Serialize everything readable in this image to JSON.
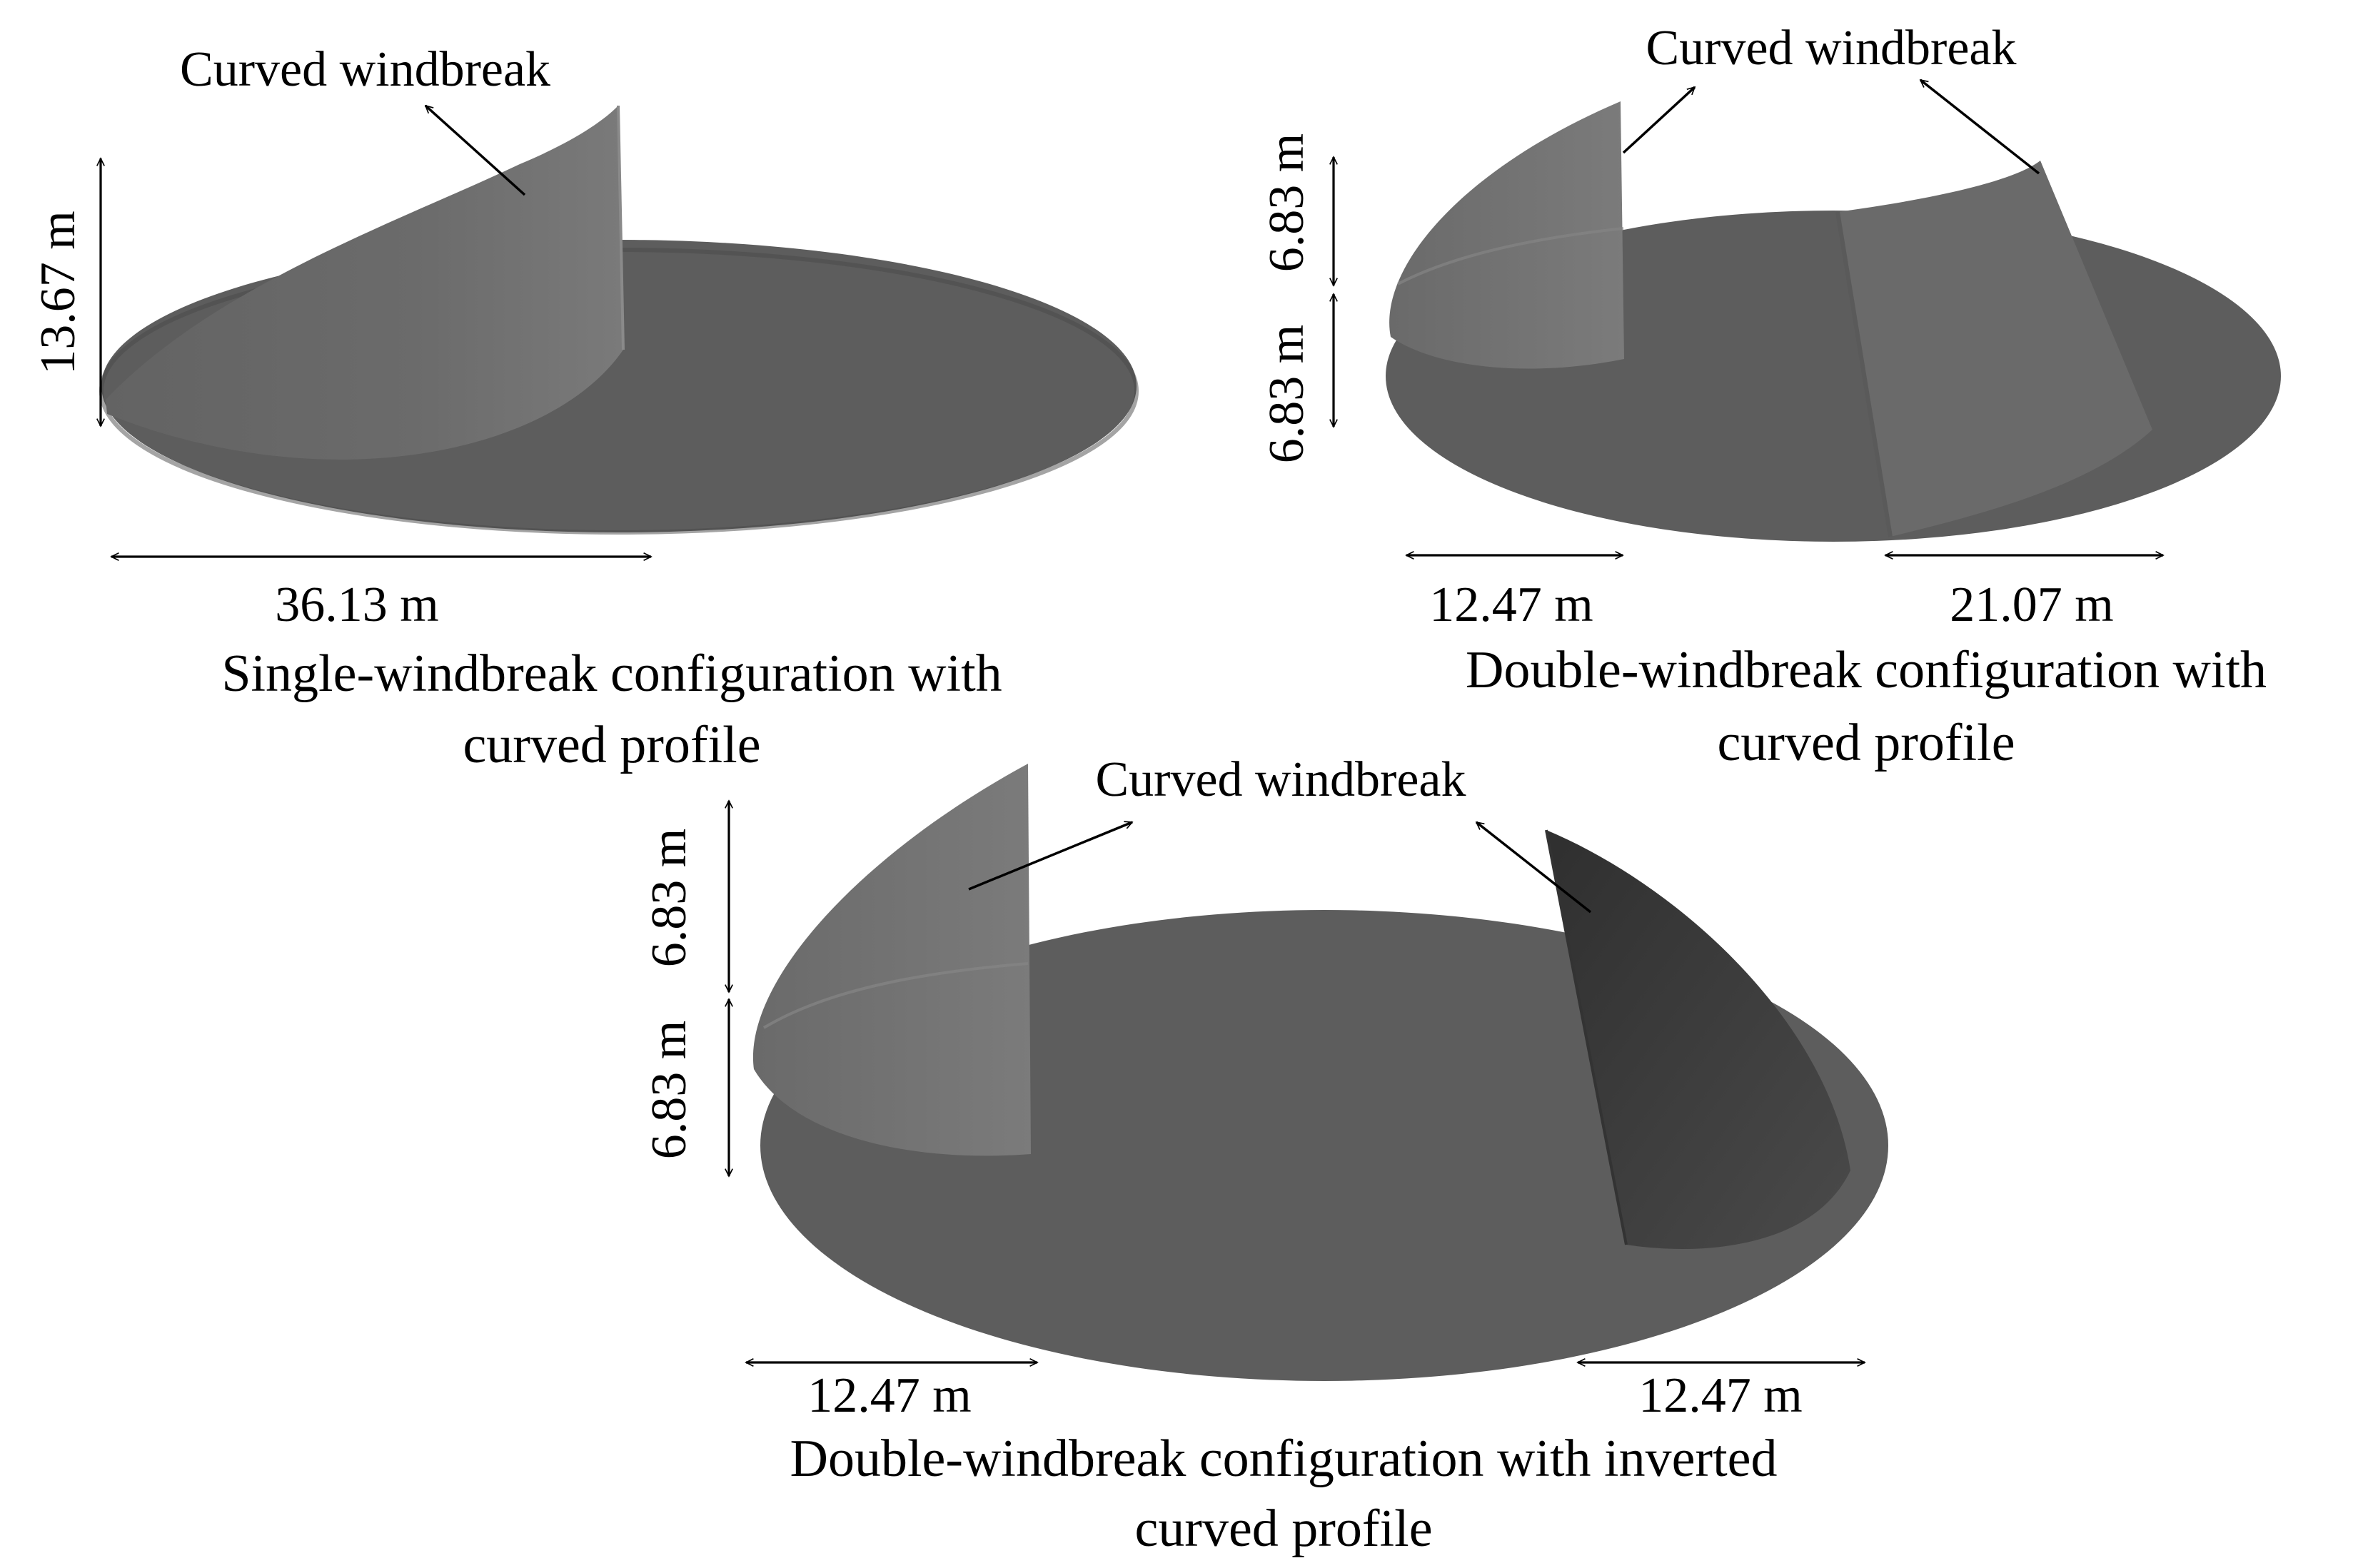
{
  "panels": [
    {
      "caption_line1": "Single-windbreak configuration with",
      "caption_line2": "curved profile",
      "windbreak_label": "Curved windbreak",
      "height_label": "13.67 m",
      "width_label": "36.13 m"
    },
    {
      "caption_line1": "Double-windbreak configuration with",
      "caption_line2": "curved profile",
      "windbreak_label": "Curved windbreak",
      "height_upper_label": "6.83 m",
      "height_lower_label": "6.83 m",
      "width_left_label": "12.47 m",
      "width_right_label": "21.07 m"
    },
    {
      "caption_line1": "Double-windbreak configuration with inverted",
      "caption_line2": "curved profile",
      "windbreak_label": "Curved windbreak",
      "height_upper_label": "6.83 m",
      "height_lower_label": "6.83 m",
      "width_left_label": "12.47 m",
      "width_right_label": "12.47 m"
    }
  ],
  "colors": {
    "ground_disc": "#5d5d5d",
    "ground_disc_edge": "#4c4c4c",
    "windbreak_light": "#777777",
    "windbreak_dark": "#3e3e3e",
    "text": "#000000"
  }
}
